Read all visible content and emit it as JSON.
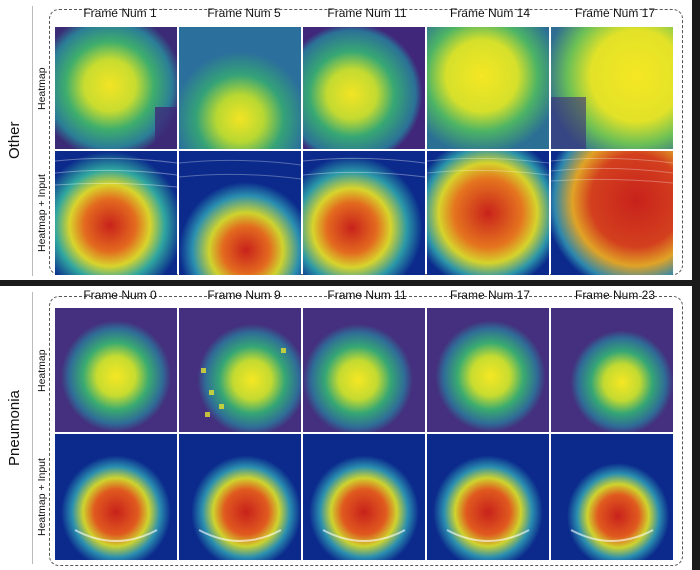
{
  "groups": [
    {
      "label": "Other",
      "row_labels": [
        "Heatmap",
        "Heatmap + Input"
      ],
      "frames": [
        "Frame Num 1",
        "Frame Num 5",
        "Frame Num 11",
        "Frame Num 14",
        "Frame Num 17"
      ]
    },
    {
      "label": "Pneumonia",
      "row_labels": [
        "Heatmap",
        "Heatmap + Input"
      ],
      "frames": [
        "Frame Num 0",
        "Frame Num 9",
        "Frame Num 11",
        "Frame Num 17",
        "Frame Num 23"
      ]
    }
  ],
  "colors": {
    "low": "#3b1f6e",
    "mid_low": "#2f7aa0",
    "mid": "#2fa67a",
    "high": "#d8e22a",
    "peak": "#f5e723",
    "overlay_hot": "#d42a1e",
    "overlay_cold": "#0b2a8c"
  }
}
